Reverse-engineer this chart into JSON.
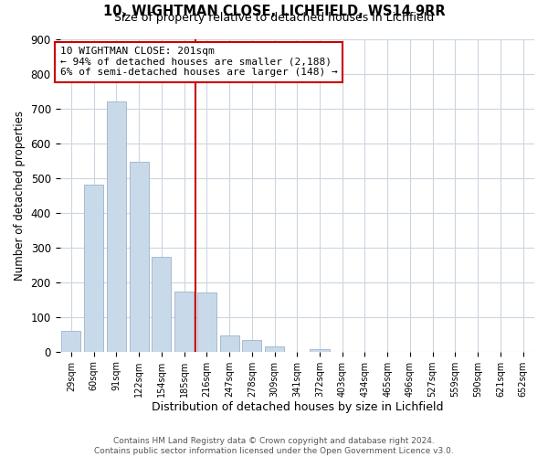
{
  "title1": "10, WIGHTMAN CLOSE, LICHFIELD, WS14 9RR",
  "title2": "Size of property relative to detached houses in Lichfield",
  "xlabel": "Distribution of detached houses by size in Lichfield",
  "ylabel": "Number of detached properties",
  "bar_labels": [
    "29sqm",
    "60sqm",
    "91sqm",
    "122sqm",
    "154sqm",
    "185sqm",
    "216sqm",
    "247sqm",
    "278sqm",
    "309sqm",
    "341sqm",
    "372sqm",
    "403sqm",
    "434sqm",
    "465sqm",
    "496sqm",
    "527sqm",
    "559sqm",
    "590sqm",
    "621sqm",
    "652sqm"
  ],
  "bar_values": [
    60,
    480,
    720,
    545,
    272,
    172,
    170,
    47,
    33,
    15,
    0,
    8,
    0,
    0,
    0,
    0,
    0,
    0,
    0,
    0,
    0
  ],
  "bar_color": "#c8d9ea",
  "bar_edge_color": "#9db3c8",
  "reference_line_index": 6,
  "reference_line_color": "#cc0000",
  "ylim": [
    0,
    900
  ],
  "yticks": [
    0,
    100,
    200,
    300,
    400,
    500,
    600,
    700,
    800,
    900
  ],
  "annotation_box_text_line1": "10 WIGHTMAN CLOSE: 201sqm",
  "annotation_box_text_line2": "← 94% of detached houses are smaller (2,188)",
  "annotation_box_text_line3": "6% of semi-detached houses are larger (148) →",
  "footnote1": "Contains HM Land Registry data © Crown copyright and database right 2024.",
  "footnote2": "Contains public sector information licensed under the Open Government Licence v3.0.",
  "bg_color": "#ffffff",
  "grid_color": "#ccd6e0"
}
